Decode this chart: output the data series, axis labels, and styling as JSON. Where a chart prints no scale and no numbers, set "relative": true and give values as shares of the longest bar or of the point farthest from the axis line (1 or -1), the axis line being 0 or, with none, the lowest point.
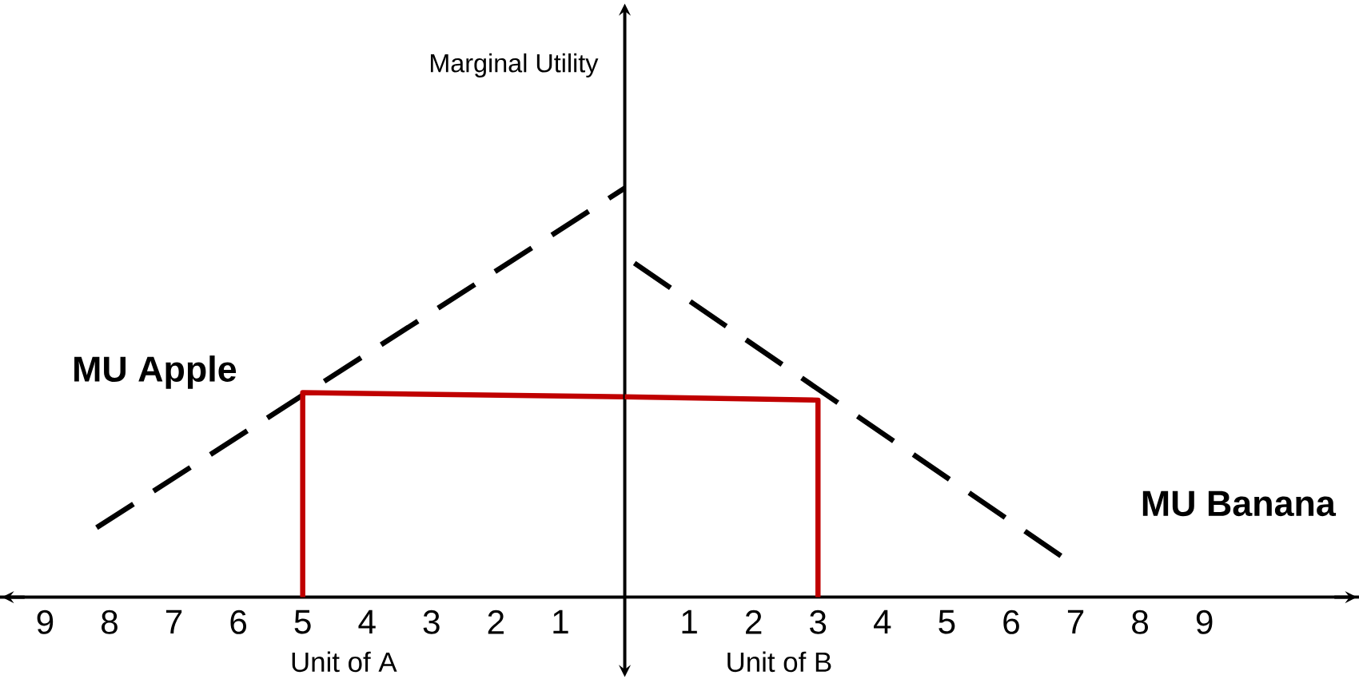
{
  "chart_data": [
    {
      "type": "line",
      "relative": true,
      "ylabel": "Marginal Utility",
      "xlabel": "Unit of A",
      "xlim": [
        9.7,
        0
      ],
      "xticks": [
        9,
        8,
        7,
        6,
        5,
        4,
        3,
        2,
        1
      ],
      "tick_labels": "x",
      "marker": "none",
      "series": [
        {
          "name": "MU Apple",
          "color": "#000000",
          "line_style": "dashed",
          "x": [
            8.2,
            0
          ],
          "values": [
            0.17,
            1.0
          ]
        },
        {
          "color": "#c00000",
          "line_style": "solid",
          "x": [
            0,
            5,
            5
          ],
          "values": [
            0.49,
            0.5,
            0
          ]
        }
      ]
    },
    {
      "type": "line",
      "relative": true,
      "xlabel": "Unit of B",
      "xlim": [
        0,
        11.4
      ],
      "xticks": [
        1,
        2,
        3,
        4,
        5,
        6,
        7,
        8,
        9
      ],
      "tick_labels": "x",
      "marker": "none",
      "series": [
        {
          "name": "MU Banana",
          "color": "#000000",
          "line_style": "dashed",
          "x": [
            0.15,
            6.8
          ],
          "values": [
            1.0,
            0.12
          ]
        },
        {
          "color": "#c00000",
          "line_style": "solid",
          "x": [
            0,
            3,
            3
          ],
          "values": [
            0.6,
            0.59,
            0
          ]
        }
      ]
    }
  ]
}
